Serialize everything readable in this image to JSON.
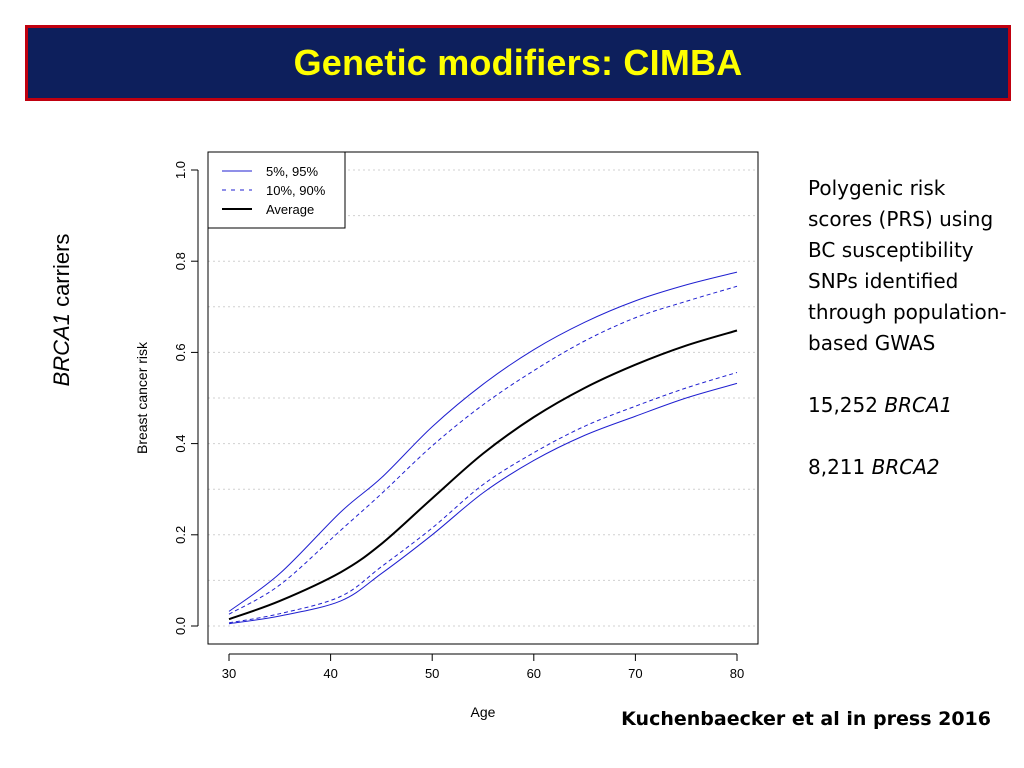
{
  "title": "Genetic modifiers: CIMBA",
  "side_label": {
    "gene": "BRCA1",
    "suffix": " carriers"
  },
  "notes": {
    "paragraph": "Polygenic risk scores (PRS) using BC susceptibility SNPs identified through population-based GWAS",
    "brca1_count": "15,252 ",
    "brca1_gene": "BRCA1",
    "brca2_count": "8,211 ",
    "brca2_gene": "BRCA2"
  },
  "citation": "Kuchenbaecker et al in press 2016",
  "chart_data": {
    "type": "line",
    "xlabel": "Age",
    "ylabel": "Breast cancer risk",
    "xlim": [
      30,
      80
    ],
    "ylim": [
      0,
      1.0
    ],
    "xticks": [
      30,
      40,
      50,
      60,
      70,
      80
    ],
    "yticks": [
      0.0,
      0.2,
      0.4,
      0.6,
      0.8,
      1.0
    ],
    "ytick_labels": [
      "0.0",
      "0.2",
      "0.4",
      "0.6",
      "0.8",
      "1.0"
    ],
    "grid": "dotted horizontal",
    "legend_position": "top-left",
    "x": [
      30,
      35,
      41,
      45,
      50,
      55,
      60,
      65,
      70,
      75,
      80
    ],
    "series": [
      {
        "name": "5%, 95%",
        "style": "solid",
        "color": "#1f1fd0",
        "width": 1,
        "group": "upper",
        "values": [
          0.032,
          0.115,
          0.25,
          0.325,
          0.437,
          0.53,
          0.606,
          0.666,
          0.713,
          0.748,
          0.776
        ]
      },
      {
        "name": "5%, 95%",
        "style": "solid",
        "color": "#1f1fd0",
        "width": 1,
        "group": "lower",
        "values": [
          0.005,
          0.022,
          0.055,
          0.115,
          0.2,
          0.292,
          0.363,
          0.418,
          0.46,
          0.5,
          0.532
        ]
      },
      {
        "name": "10%, 90%",
        "style": "dashed",
        "color": "#1f1fd0",
        "width": 1,
        "group": "upper",
        "values": [
          0.026,
          0.09,
          0.21,
          0.29,
          0.395,
          0.485,
          0.56,
          0.625,
          0.676,
          0.712,
          0.745
        ]
      },
      {
        "name": "10%, 90%",
        "style": "dashed",
        "color": "#1f1fd0",
        "width": 1,
        "group": "lower",
        "values": [
          0.007,
          0.027,
          0.065,
          0.13,
          0.215,
          0.31,
          0.38,
          0.438,
          0.482,
          0.522,
          0.556
        ]
      },
      {
        "name": "Average",
        "style": "solid",
        "color": "#000000",
        "width": 2,
        "group": "middle",
        "values": [
          0.015,
          0.055,
          0.118,
          0.18,
          0.28,
          0.378,
          0.458,
          0.522,
          0.573,
          0.615,
          0.648
        ]
      }
    ],
    "legend": [
      {
        "label": "5%, 95%",
        "style": "solid",
        "color": "#1f1fd0"
      },
      {
        "label": "10%, 90%",
        "style": "dashed",
        "color": "#1f1fd0"
      },
      {
        "label": "Average",
        "style": "solid",
        "color": "#000000"
      }
    ]
  }
}
